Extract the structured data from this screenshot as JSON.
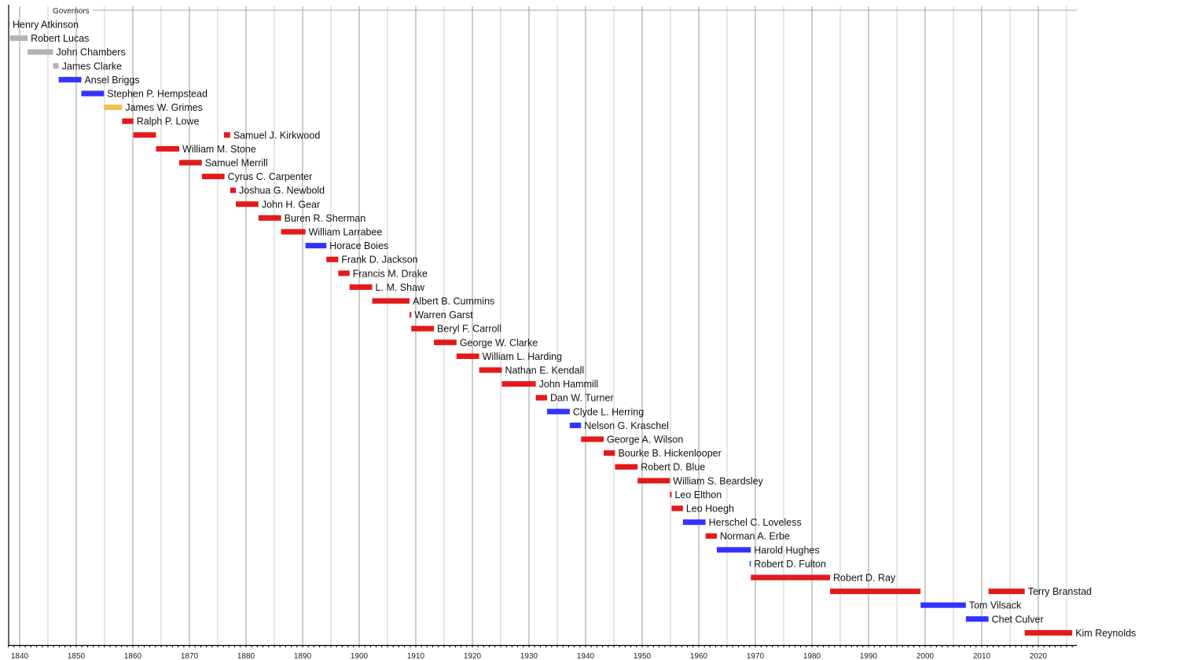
{
  "chart_data": {
    "type": "timeline",
    "title": "Governors",
    "xlim": [
      1838,
      2026
    ],
    "x_ticks": [
      1840,
      1850,
      1860,
      1870,
      1880,
      1890,
      1900,
      1910,
      1920,
      1930,
      1940,
      1950,
      1960,
      1970,
      1980,
      1990,
      2000,
      2010,
      2020
    ],
    "grid": "vertical, major every 10 years, minor every 5 years",
    "colors": {
      "territorial": "#b3b3b3",
      "democratic": "#3333ff",
      "whig": "#f0c050",
      "republican": "#e31a1c"
    },
    "rows": [
      {
        "name": "Henry Atkinson",
        "party": "territorial",
        "terms": [
          [
            1838.0,
            1838.2
          ]
        ]
      },
      {
        "name": "Robert Lucas",
        "party": "territorial",
        "terms": [
          [
            1838.3,
            1841.4
          ]
        ]
      },
      {
        "name": "John Chambers",
        "party": "territorial",
        "terms": [
          [
            1841.4,
            1845.9
          ]
        ]
      },
      {
        "name": "James Clarke",
        "party": "territorial",
        "terms": [
          [
            1845.9,
            1846.9
          ]
        ]
      },
      {
        "name": "Ansel Briggs",
        "party": "democratic",
        "terms": [
          [
            1846.9,
            1850.9
          ]
        ]
      },
      {
        "name": "Stephen P. Hempstead",
        "party": "democratic",
        "terms": [
          [
            1850.9,
            1854.9
          ]
        ]
      },
      {
        "name": "James W. Grimes",
        "party": "whig",
        "terms": [
          [
            1854.9,
            1858.1
          ]
        ]
      },
      {
        "name": "Ralph P. Lowe",
        "party": "republican",
        "terms": [
          [
            1858.1,
            1860.1
          ]
        ]
      },
      {
        "name": "Samuel J. Kirkwood",
        "party": "republican",
        "terms": [
          [
            1860.1,
            1864.1
          ],
          [
            1876.1,
            1877.2
          ]
        ]
      },
      {
        "name": "William M. Stone",
        "party": "republican",
        "terms": [
          [
            1864.1,
            1868.2
          ]
        ]
      },
      {
        "name": "Samuel Merrill",
        "party": "republican",
        "terms": [
          [
            1868.2,
            1872.2
          ]
        ]
      },
      {
        "name": "Cyrus C. Carpenter",
        "party": "republican",
        "terms": [
          [
            1872.2,
            1876.2
          ]
        ]
      },
      {
        "name": "Joshua G. Newbold",
        "party": "republican",
        "terms": [
          [
            1877.2,
            1878.2
          ]
        ]
      },
      {
        "name": "John H. Gear",
        "party": "republican",
        "terms": [
          [
            1878.2,
            1882.2
          ]
        ]
      },
      {
        "name": "Buren R. Sherman",
        "party": "republican",
        "terms": [
          [
            1882.2,
            1886.2
          ]
        ]
      },
      {
        "name": "William Larrabee",
        "party": "republican",
        "terms": [
          [
            1886.2,
            1890.5
          ]
        ]
      },
      {
        "name": "Horace Boies",
        "party": "democratic",
        "terms": [
          [
            1890.5,
            1894.2
          ]
        ]
      },
      {
        "name": "Frank D. Jackson",
        "party": "republican",
        "terms": [
          [
            1894.2,
            1896.3
          ]
        ]
      },
      {
        "name": "Francis M. Drake",
        "party": "republican",
        "terms": [
          [
            1896.3,
            1898.3
          ]
        ]
      },
      {
        "name": "L. M. Shaw",
        "party": "republican",
        "terms": [
          [
            1898.3,
            1902.3
          ]
        ]
      },
      {
        "name": "Albert B. Cummins",
        "party": "republican",
        "terms": [
          [
            1902.3,
            1908.9
          ]
        ]
      },
      {
        "name": "Warren Garst",
        "party": "republican",
        "terms": [
          [
            1908.9,
            1909.2
          ]
        ]
      },
      {
        "name": "Beryl F. Carroll",
        "party": "republican",
        "terms": [
          [
            1909.2,
            1913.2
          ]
        ]
      },
      {
        "name": "George W. Clarke",
        "party": "republican",
        "terms": [
          [
            1913.2,
            1917.2
          ]
        ]
      },
      {
        "name": "William L. Harding",
        "party": "republican",
        "terms": [
          [
            1917.2,
            1921.2
          ]
        ]
      },
      {
        "name": "Nathan E. Kendall",
        "party": "republican",
        "terms": [
          [
            1921.2,
            1925.2
          ]
        ]
      },
      {
        "name": "John Hammill",
        "party": "republican",
        "terms": [
          [
            1925.2,
            1931.2
          ]
        ]
      },
      {
        "name": "Dan W. Turner",
        "party": "republican",
        "terms": [
          [
            1931.2,
            1933.2
          ]
        ]
      },
      {
        "name": "Clyde L. Herring",
        "party": "democratic",
        "terms": [
          [
            1933.2,
            1937.2
          ]
        ]
      },
      {
        "name": "Nelson G. Kraschel",
        "party": "democratic",
        "terms": [
          [
            1937.2,
            1939.2
          ]
        ]
      },
      {
        "name": "George A. Wilson",
        "party": "republican",
        "terms": [
          [
            1939.2,
            1943.2
          ]
        ]
      },
      {
        "name": "Bourke B. Hickenlooper",
        "party": "republican",
        "terms": [
          [
            1943.2,
            1945.2
          ]
        ]
      },
      {
        "name": "Robert D. Blue",
        "party": "republican",
        "terms": [
          [
            1945.2,
            1949.2
          ]
        ]
      },
      {
        "name": "William S. Beardsley",
        "party": "republican",
        "terms": [
          [
            1949.2,
            1954.9
          ]
        ]
      },
      {
        "name": "Leo Elthon",
        "party": "republican",
        "terms": [
          [
            1954.9,
            1955.2
          ]
        ]
      },
      {
        "name": "Leo Hoegh",
        "party": "republican",
        "terms": [
          [
            1955.2,
            1957.2
          ]
        ]
      },
      {
        "name": "Herschel C. Loveless",
        "party": "democratic",
        "terms": [
          [
            1957.2,
            1961.2
          ]
        ]
      },
      {
        "name": "Norman A. Erbe",
        "party": "republican",
        "terms": [
          [
            1961.2,
            1963.2
          ]
        ]
      },
      {
        "name": "Harold Hughes",
        "party": "democratic",
        "terms": [
          [
            1963.2,
            1969.2
          ]
        ]
      },
      {
        "name": "Robert D. Fulton",
        "party": "democratic",
        "terms": [
          [
            1969.0,
            1969.2
          ]
        ]
      },
      {
        "name": "Robert D. Ray",
        "party": "republican",
        "terms": [
          [
            1969.2,
            1983.2
          ]
        ]
      },
      {
        "name": "Terry Branstad",
        "party": "republican",
        "terms": [
          [
            1983.2,
            1999.2
          ],
          [
            2011.2,
            2017.6
          ]
        ]
      },
      {
        "name": "Tom Vilsack",
        "party": "democratic",
        "terms": [
          [
            1999.2,
            2007.2
          ]
        ]
      },
      {
        "name": "Chet Culver",
        "party": "democratic",
        "terms": [
          [
            2007.2,
            2011.2
          ]
        ]
      },
      {
        "name": "Kim Reynolds",
        "party": "republican",
        "terms": [
          [
            2017.6,
            2026.0
          ]
        ]
      }
    ]
  }
}
